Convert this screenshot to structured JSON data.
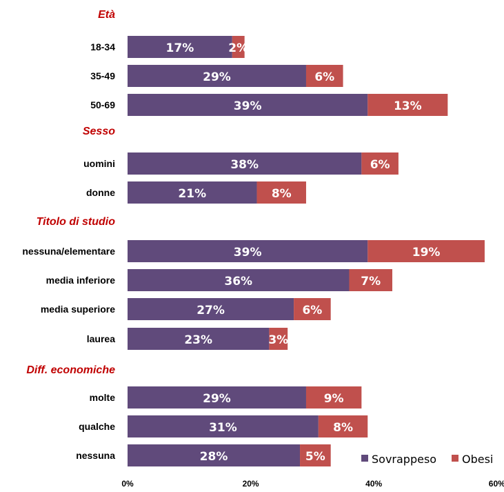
{
  "chart_data": {
    "type": "bar",
    "orientation": "horizontal",
    "stacked": true,
    "title": "",
    "xlabel": "",
    "ylabel": "",
    "xlim": [
      0,
      60
    ],
    "x_ticks": [
      "0%",
      "20%",
      "40%",
      "60%"
    ],
    "x_tick_values": [
      0,
      20,
      40,
      60
    ],
    "grid": false,
    "legend_position": "bottom-right",
    "series": [
      {
        "name": "Sovrappeso",
        "color": "#604A7B"
      },
      {
        "name": "Obesi",
        "color": "#C0504D"
      }
    ],
    "groups": [
      {
        "title": "Età",
        "categories": [
          {
            "label": "18-34",
            "values": [
              17,
              2
            ],
            "labels": [
              "17%",
              "2%"
            ]
          },
          {
            "label": "35-49",
            "values": [
              29,
              6
            ],
            "labels": [
              "29%",
              "6%"
            ]
          },
          {
            "label": "50-69",
            "values": [
              39,
              13
            ],
            "labels": [
              "39%",
              "13%"
            ]
          }
        ]
      },
      {
        "title": "Sesso",
        "categories": [
          {
            "label": "uomini",
            "values": [
              38,
              6
            ],
            "labels": [
              "38%",
              "6%"
            ]
          },
          {
            "label": "donne",
            "values": [
              21,
              8
            ],
            "labels": [
              "21%",
              "8%"
            ]
          }
        ]
      },
      {
        "title": "Titolo di studio",
        "categories": [
          {
            "label": "nessuna/elementare",
            "values": [
              39,
              19
            ],
            "labels": [
              "39%",
              "19%"
            ]
          },
          {
            "label": "media inferiore",
            "values": [
              36,
              7
            ],
            "labels": [
              "36%",
              "7%"
            ]
          },
          {
            "label": "media superiore",
            "values": [
              27,
              6
            ],
            "labels": [
              "27%",
              "6%"
            ]
          },
          {
            "label": "laurea",
            "values": [
              23,
              3
            ],
            "labels": [
              "23%",
              "3%"
            ]
          }
        ]
      },
      {
        "title": "Diff. economiche",
        "categories": [
          {
            "label": "molte",
            "values": [
              29,
              9
            ],
            "labels": [
              "29%",
              "9%"
            ]
          },
          {
            "label": "qualche",
            "values": [
              31,
              8
            ],
            "labels": [
              "31%",
              "8%"
            ]
          },
          {
            "label": "nessuna",
            "values": [
              28,
              5
            ],
            "labels": [
              "28%",
              "5%"
            ]
          }
        ]
      }
    ]
  }
}
